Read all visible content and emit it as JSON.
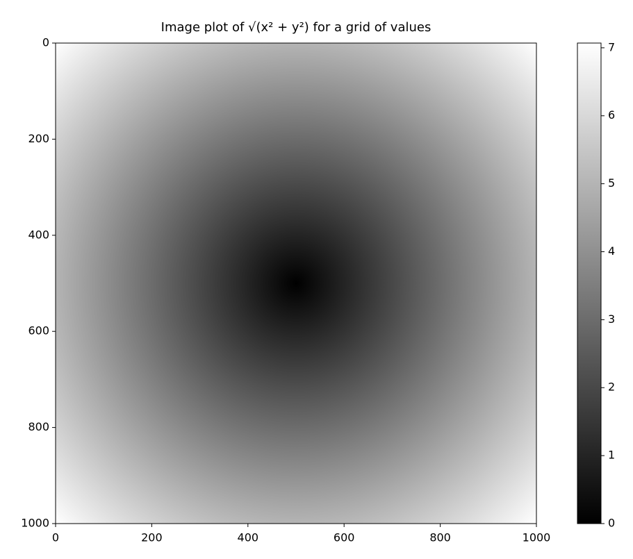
{
  "chart_data": {
    "type": "image",
    "title": "Image plot of √(x² + y²) for a grid of values",
    "cmap": "gray",
    "xlim": [
      0,
      1000
    ],
    "ylim": [
      1000,
      0
    ],
    "xticks": [
      0,
      200,
      400,
      600,
      800,
      1000
    ],
    "yticks": [
      0,
      200,
      400,
      600,
      800,
      1000
    ],
    "clim": [
      0,
      7.07
    ],
    "cticks": [
      0,
      1,
      2,
      3,
      4,
      5,
      6,
      7
    ]
  }
}
